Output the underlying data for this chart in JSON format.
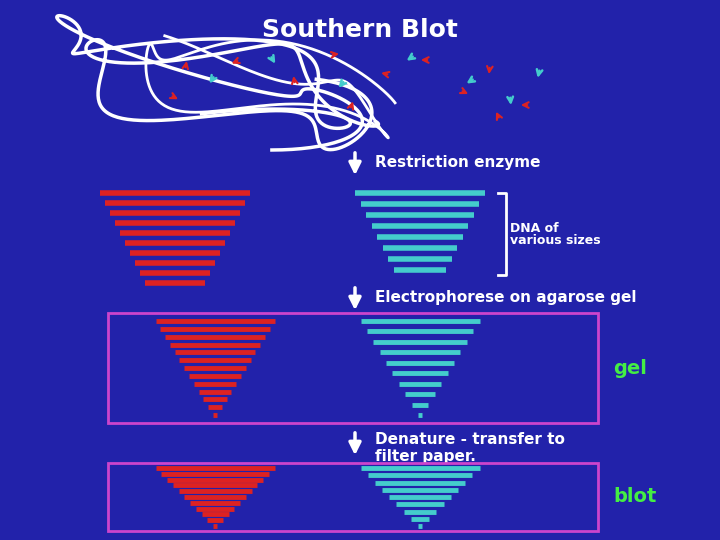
{
  "bg_color": "#2222AA",
  "title": "Southern Blot",
  "title_color": "white",
  "title_fontsize": 18,
  "red_color": "#DD2222",
  "cyan_color": "#44CCCC",
  "white_color": "white",
  "magenta_color": "#CC44CC",
  "green_label_color": "#44EE44",
  "labels": {
    "restriction": "Restriction enzyme",
    "electrophorese": "Electrophorese on agarose gel",
    "denature": "Denature - transfer to\nfilter paper.",
    "dna_of": "DNA of",
    "various_sizes": "various sizes",
    "gel": "gel",
    "blot": "blot"
  }
}
